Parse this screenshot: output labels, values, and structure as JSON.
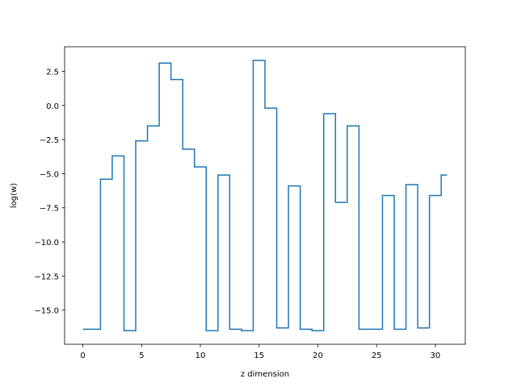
{
  "chart_data": {
    "type": "line",
    "drawstyle": "steps-mid",
    "title": "",
    "xlabel": "z dimension",
    "ylabel": "log(w)",
    "xlim": [
      -1.55,
      32.55
    ],
    "ylim": [
      -17.5,
      4.3
    ],
    "xticks": [
      0,
      5,
      10,
      15,
      20,
      25,
      30
    ],
    "xtick_labels": [
      "0",
      "5",
      "10",
      "15",
      "20",
      "25",
      "30"
    ],
    "yticks": [
      2.5,
      0.0,
      -2.5,
      -5.0,
      -7.5,
      -10.0,
      -12.5,
      -15.0
    ],
    "ytick_labels": [
      "2.5",
      "0.0",
      "−2.5",
      "−5.0",
      "−7.5",
      "−10.0",
      "−12.5",
      "−15.0"
    ],
    "grid": false,
    "legend": "none",
    "series": [
      {
        "color": "#1f77b4",
        "x": [
          0,
          1,
          2,
          3,
          4,
          5,
          6,
          7,
          8,
          9,
          10,
          11,
          12,
          13,
          14,
          15,
          16,
          17,
          18,
          19,
          20,
          21,
          22,
          23,
          24,
          25,
          26,
          27,
          28,
          29,
          30,
          31
        ],
        "y": [
          -16.4,
          -16.4,
          -5.4,
          -3.7,
          -16.5,
          -2.6,
          -1.5,
          3.1,
          1.9,
          -3.2,
          -4.5,
          -16.5,
          -5.1,
          -16.4,
          -16.5,
          3.3,
          -0.2,
          -16.3,
          -5.9,
          -16.4,
          -16.5,
          -0.6,
          -7.1,
          -1.5,
          -16.4,
          -16.4,
          -6.6,
          -16.4,
          -5.8,
          -16.3,
          -6.6,
          -5.1
        ]
      }
    ]
  }
}
